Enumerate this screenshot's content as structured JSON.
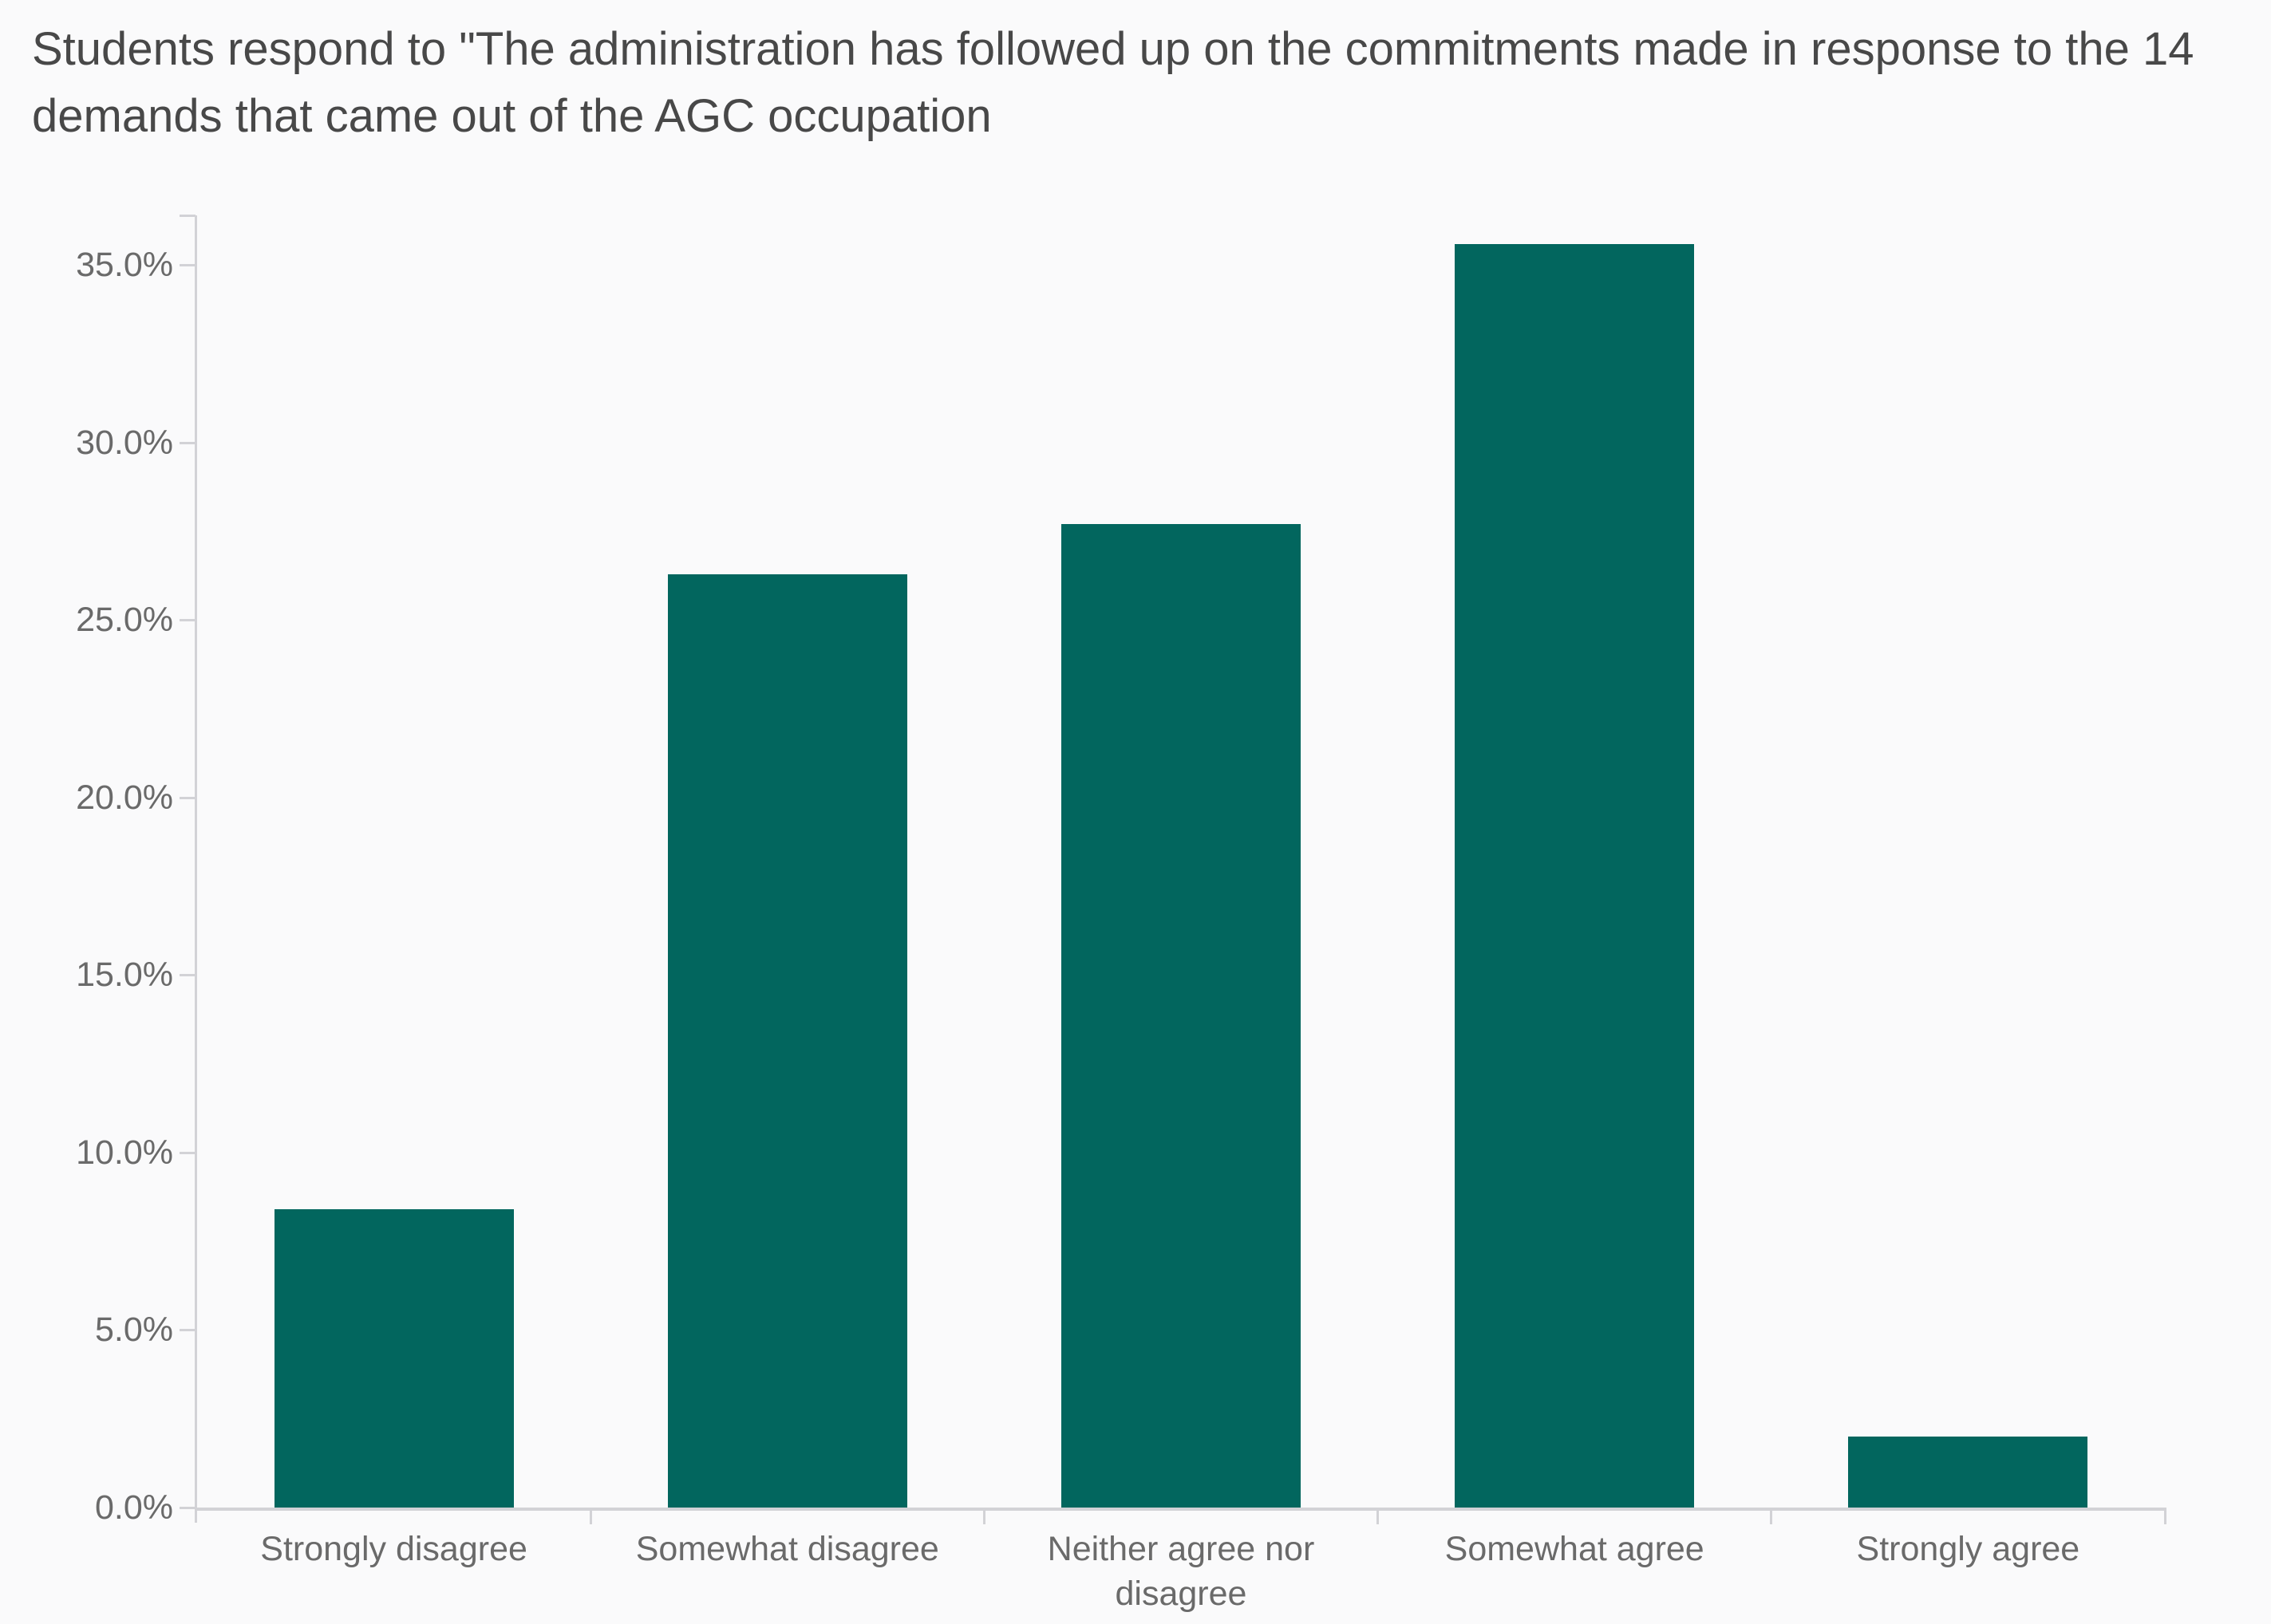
{
  "chart_data": {
    "type": "bar",
    "title": "Students respond to \"The administration has followed up on the commitments made in response to the 14 demands that came out of the AGC occupation",
    "categories": [
      "Strongly disagree",
      "Somewhat disagree",
      "Neither agree nor disagree",
      "Somewhat agree",
      "Strongly agree"
    ],
    "values": [
      8.4,
      26.3,
      27.7,
      35.6,
      2.0
    ],
    "unit": "%",
    "xlabel": "",
    "ylabel": "",
    "ylim": [
      0,
      36.4
    ],
    "y_ticks": [
      {
        "value": 0,
        "label": "0.0%"
      },
      {
        "value": 5,
        "label": "5.0%"
      },
      {
        "value": 10,
        "label": "10.0%"
      },
      {
        "value": 15,
        "label": "15.0%"
      },
      {
        "value": 20,
        "label": "20.0%"
      },
      {
        "value": 25,
        "label": "25.0%"
      },
      {
        "value": 30,
        "label": "30.0%"
      },
      {
        "value": 35,
        "label": "35.0%"
      }
    ],
    "grid": "off",
    "legend": "none",
    "colors": {
      "bar": "#02665e",
      "axis": "#d2d2d6",
      "tick_label": "#6a6a6a",
      "title": "#484848",
      "background": "#fafafb"
    }
  }
}
